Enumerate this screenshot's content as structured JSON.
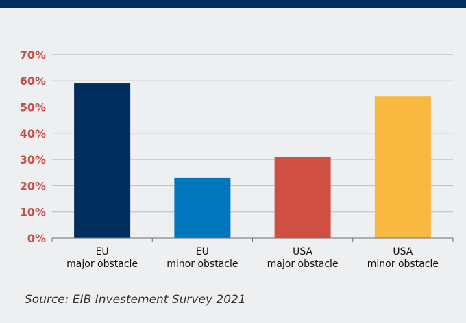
{
  "colors": {
    "header_band": "#002f5f",
    "background": "#eeeff0",
    "tick_label": "#cc4b3f",
    "grid": "#b9bdc2"
  },
  "source": "Source: EIB Investement Survey 2021",
  "chart_data": {
    "type": "bar",
    "title": "",
    "xlabel": "",
    "ylabel": "",
    "categories": [
      [
        "EU",
        "major obstacle"
      ],
      [
        "EU",
        "minor obstacle"
      ],
      [
        "USA",
        "major obstacle"
      ],
      [
        "USA",
        "minor obstacle"
      ]
    ],
    "values": [
      59,
      23,
      31,
      54
    ],
    "bar_colors": [
      "#002f5f",
      "#0077bd",
      "#cf5043",
      "#f9b941"
    ],
    "yticks": [
      "0%",
      "10%",
      "20%",
      "30%",
      "40%",
      "50%",
      "60%",
      "70%"
    ],
    "ylim": [
      0,
      70
    ],
    "grid": true,
    "legend": "none"
  }
}
